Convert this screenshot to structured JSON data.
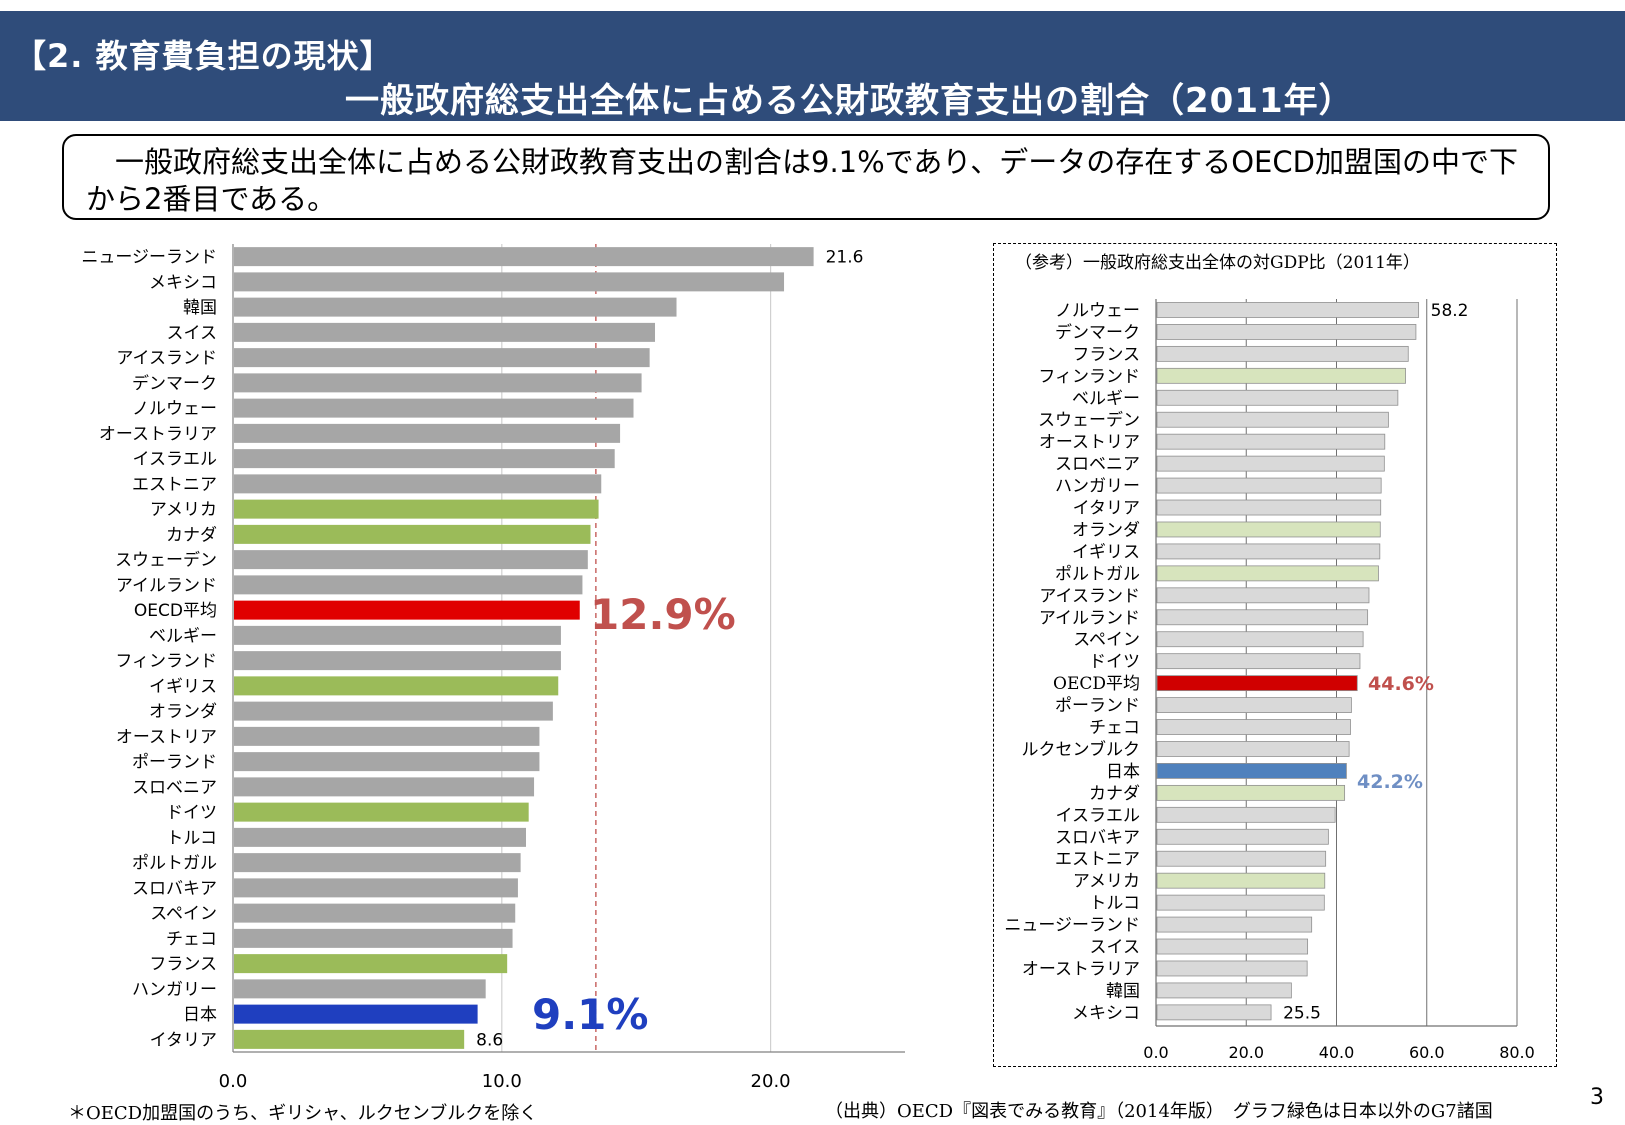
{
  "header": {
    "section_label": "【2. 教育費負担の現状】",
    "title": "一般政府総支出全体に占める公財政教育支出の割合（2011年）"
  },
  "summary": {
    "text": "　一般政府総支出全体に占める公財政教育支出の割合は9.1%であり、データの存在するOECD加盟国の中で下から2番目である。"
  },
  "chart_data": [
    {
      "type": "bar",
      "orientation": "horizontal",
      "categories": [
        "ニュージーランド",
        "メキシコ",
        "韓国",
        "スイス",
        "アイスランド",
        "デンマーク",
        "ノルウェー",
        "オーストラリア",
        "イスラエル",
        "エストニア",
        "アメリカ",
        "カナダ",
        "スウェーデン",
        "アイルランド",
        "OECD平均",
        "ベルギー",
        "フィンランド",
        "イギリス",
        "オランダ",
        "オーストリア",
        "ポーランド",
        "スロベニア",
        "ドイツ",
        "トルコ",
        "ポルトガル",
        "スロバキア",
        "スペイン",
        "チェコ",
        "フランス",
        "ハンガリー",
        "日本",
        "イタリア"
      ],
      "values": [
        21.6,
        20.5,
        16.5,
        15.7,
        15.5,
        15.2,
        14.9,
        14.4,
        14.2,
        13.7,
        13.6,
        13.3,
        13.2,
        13.0,
        12.9,
        12.2,
        12.2,
        12.1,
        11.9,
        11.4,
        11.4,
        11.2,
        11.0,
        10.9,
        10.7,
        10.6,
        10.5,
        10.4,
        10.2,
        9.4,
        9.1,
        8.6
      ],
      "highlight": [
        "gray",
        "gray",
        "gray",
        "gray",
        "gray",
        "gray",
        "gray",
        "gray",
        "gray",
        "gray",
        "g7",
        "g7",
        "gray",
        "gray",
        "oecd",
        "gray",
        "gray",
        "g7",
        "gray",
        "gray",
        "gray",
        "gray",
        "g7",
        "gray",
        "gray",
        "gray",
        "gray",
        "gray",
        "g7",
        "gray",
        "japan",
        "g7"
      ],
      "colors": {
        "gray": "#a6a6a6",
        "g7": "#9bbb59",
        "oecd": "#e00000",
        "japan": "#1f3fbf",
        "avg_line": "#c0504d"
      },
      "xlim": [
        0,
        25
      ],
      "xticks": [
        "0.0",
        "10.0",
        "20.0"
      ],
      "data_labels": {
        "ニュージーランド": "21.6",
        "イタリア": "8.6"
      },
      "average_line": 13.5,
      "annotations": {
        "oecd": "12.9%",
        "japan": "9.1%"
      },
      "grid": true
    },
    {
      "type": "bar",
      "orientation": "horizontal",
      "title": "（参考）一般政府総支出全体の対GDP比（2011年）",
      "categories": [
        "ノルウェー",
        "デンマーク",
        "フランス",
        "フィンランド",
        "ベルギー",
        "スウェーデン",
        "オーストリア",
        "スロベニア",
        "ハンガリー",
        "イタリア",
        "オランダ",
        "イギリス",
        "ポルトガル",
        "アイスランド",
        "アイルランド",
        "スペイン",
        "ドイツ",
        "OECD平均",
        "ポーランド",
        "チェコ",
        "ルクセンブルク",
        "日本",
        "カナダ",
        "イスラエル",
        "スロバキア",
        "エストニア",
        "アメリカ",
        "トルコ",
        "ニュージーランド",
        "スイス",
        "オーストラリア",
        "韓国",
        "メキシコ"
      ],
      "values": [
        58.2,
        57.6,
        55.9,
        55.3,
        53.6,
        51.5,
        50.7,
        50.6,
        49.9,
        49.8,
        49.7,
        49.6,
        49.3,
        47.2,
        46.9,
        45.9,
        45.2,
        44.6,
        43.3,
        43.1,
        42.8,
        42.2,
        41.8,
        39.7,
        38.2,
        37.6,
        37.4,
        37.3,
        34.5,
        33.6,
        33.5,
        30.0,
        25.5
      ],
      "highlight": [
        "gray",
        "gray",
        "gray",
        "g7",
        "gray",
        "gray",
        "gray",
        "gray",
        "gray",
        "gray",
        "g7",
        "gray",
        "g7",
        "gray",
        "gray",
        "gray",
        "gray",
        "oecd",
        "gray",
        "gray",
        "gray",
        "japan",
        "g7",
        "gray",
        "gray",
        "gray",
        "g7",
        "gray",
        "gray",
        "gray",
        "gray",
        "gray",
        "gray"
      ],
      "colors": {
        "gray": "#d9d9d9",
        "g7": "#d7e4bd",
        "oecd": "#d00000",
        "japan": "#4f81bd"
      },
      "xlim": [
        0,
        80
      ],
      "xticks": [
        "0.0",
        "20.0",
        "40.0",
        "60.0",
        "80.0"
      ],
      "data_labels": {
        "ノルウェー": "58.2",
        "メキシコ": "25.5"
      },
      "annotations": {
        "oecd": "44.6%",
        "japan": "42.2%"
      },
      "grid": true
    }
  ],
  "footer": {
    "note_left": "＊OECD加盟国のうち、ギリシャ、ルクセンブルクを除く",
    "source": "（出典）OECD『図表でみる教育』（2014年版）　グラフ緑色は日本以外のG7諸国",
    "page_number": "3"
  }
}
